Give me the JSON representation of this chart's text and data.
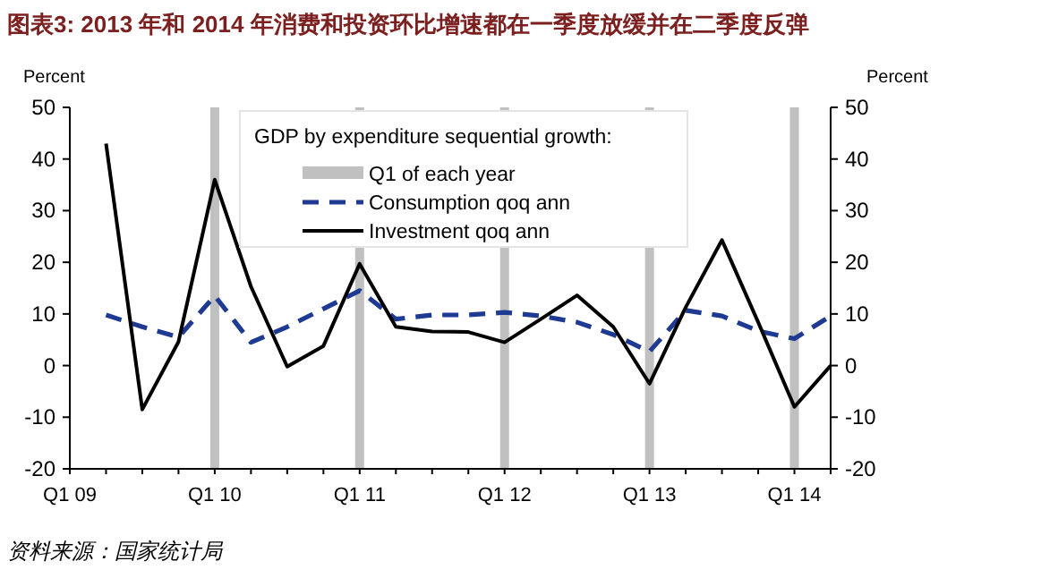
{
  "chart_data": {
    "type": "line",
    "title": "图表3: 2013 年和 2014 年消费和投资环比增速都在一季度放缓并在二季度反弹",
    "categories": [
      "Q1 09",
      null,
      null,
      null,
      "Q1 10",
      null,
      null,
      null,
      "Q1 11",
      null,
      null,
      null,
      "Q1 12",
      null,
      null,
      null,
      "Q1 13",
      null,
      null,
      null,
      "Q1 14",
      null
    ],
    "series": [
      {
        "name": "Q1 of each year",
        "type": "bar",
        "color": "#c0c0c0",
        "base": [
          null,
          null,
          null,
          null,
          -20,
          null,
          null,
          null,
          -20,
          null,
          null,
          null,
          -20,
          null,
          null,
          null,
          -20,
          null,
          null,
          null,
          -20,
          null
        ],
        "values": [
          null,
          null,
          null,
          null,
          70,
          null,
          null,
          null,
          70,
          null,
          null,
          null,
          70,
          null,
          null,
          null,
          70,
          null,
          null,
          null,
          70,
          null
        ]
      },
      {
        "name": "Consumption qoq ann",
        "color": "#1f3a93",
        "line_style": "dashed",
        "values": [
          null,
          9.8,
          7.5,
          5.5,
          13.5,
          4.5,
          7.5,
          11,
          14.5,
          9,
          9.8,
          9.8,
          10.3,
          9.6,
          8.4,
          6,
          2.7,
          10.7,
          9.6,
          6.7,
          5.2,
          9.6
        ]
      },
      {
        "name": "Investment qoq ann",
        "color": "#000000",
        "line_style": "solid",
        "values": [
          null,
          43,
          -8.5,
          4.6,
          36,
          15.3,
          -0.2,
          3.8,
          19.7,
          7.5,
          6.6,
          6.5,
          4.5,
          9,
          13.6,
          7.5,
          -3.5,
          11.3,
          24.3,
          8.4,
          -8,
          0
        ]
      }
    ],
    "ylabel": "Percent",
    "y2label": "Percent",
    "ylim": [
      -20,
      50
    ],
    "yticks": [
      -20,
      -10,
      0,
      10,
      20,
      30,
      40,
      50
    ],
    "y2lim": [
      -20,
      50
    ],
    "y2ticks": [
      -20,
      -10,
      0,
      10,
      20,
      30,
      40,
      50
    ],
    "legend_title": "GDP by expenditure sequential growth:",
    "legend": "top",
    "annotations": [
      "资料来源：国家统计局"
    ]
  }
}
